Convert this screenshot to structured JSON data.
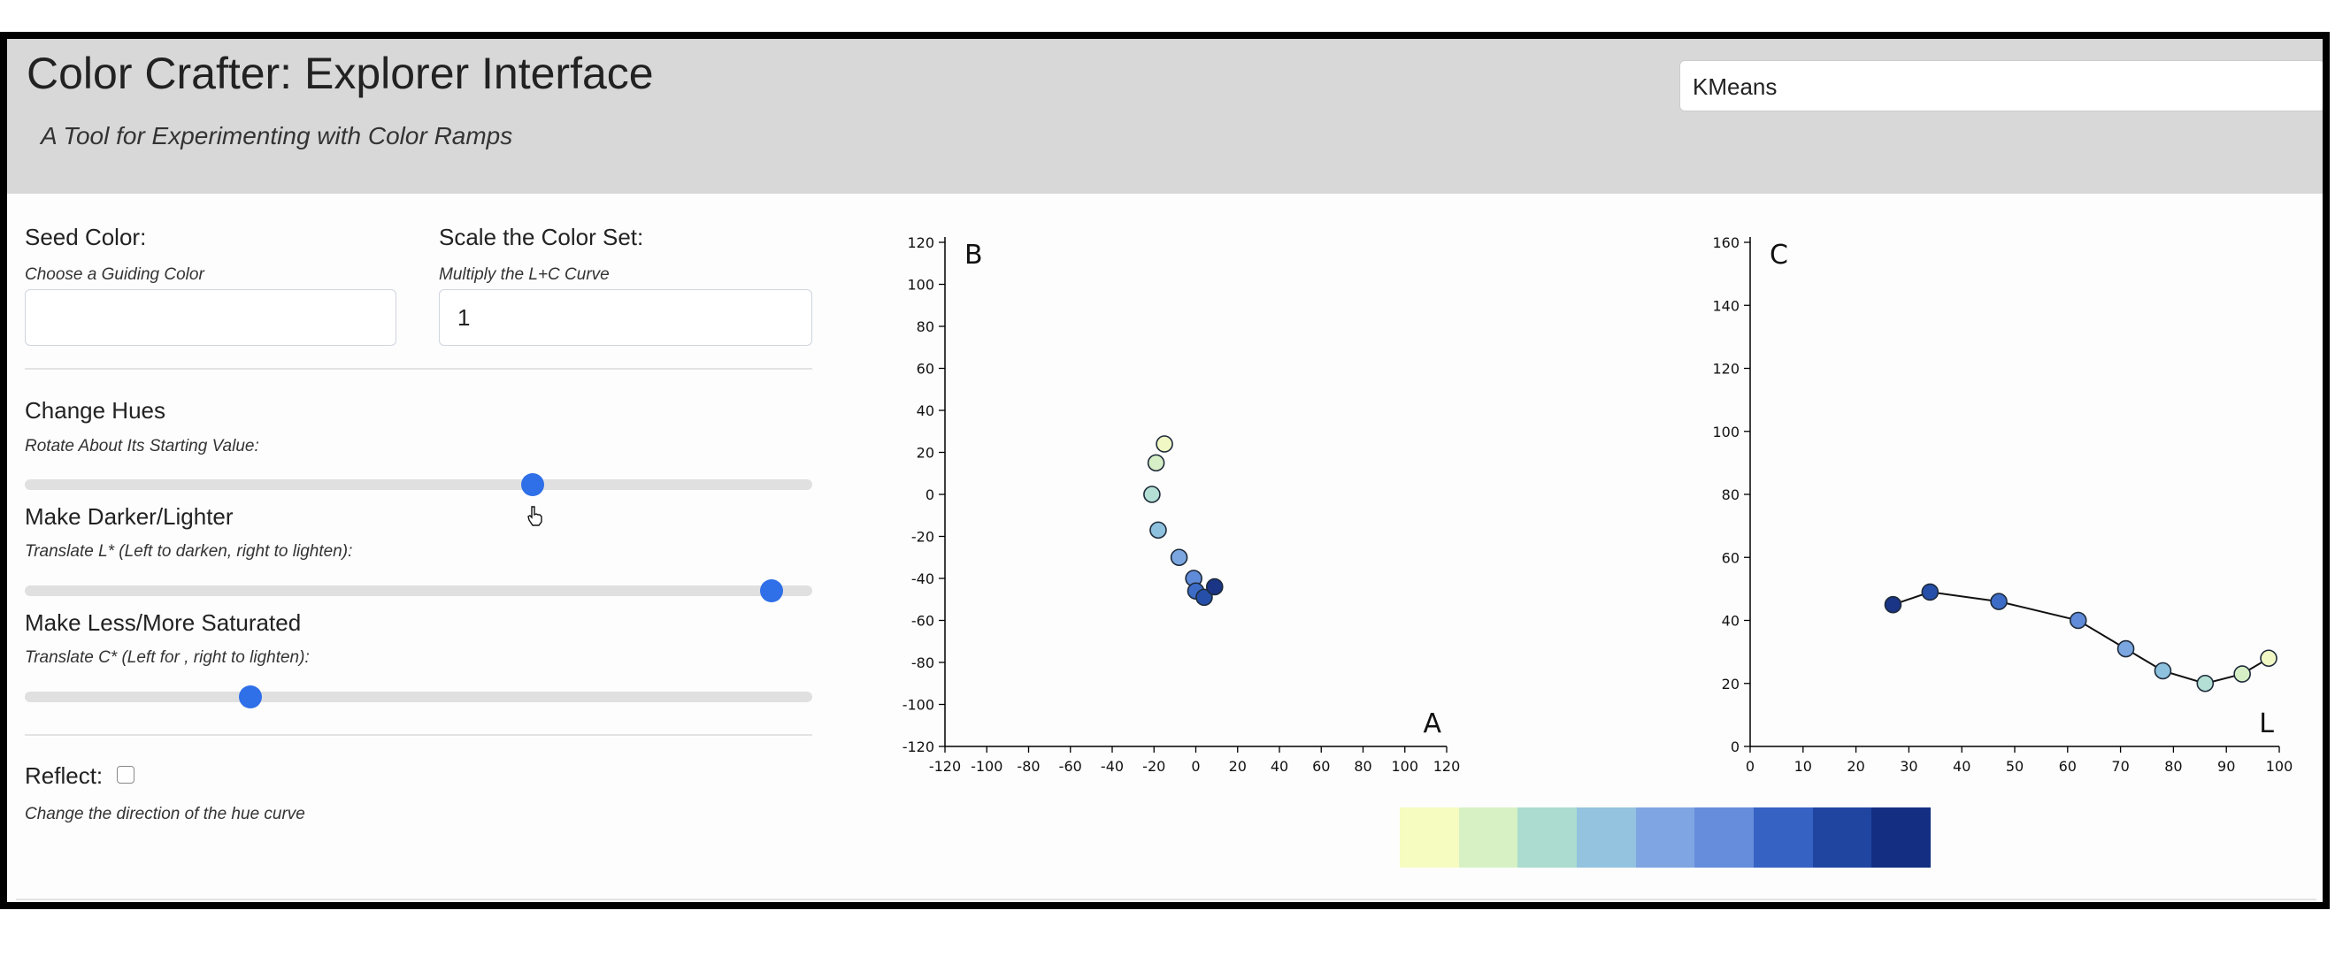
{
  "header": {
    "title": "Color Crafter: Explorer Interface",
    "subtitle": "A Tool for Experimenting with Color Ramps",
    "algorithm": "KMeans"
  },
  "controls": {
    "seed": {
      "label": "Seed Color:",
      "hint": "Choose a Guiding Color",
      "value": ""
    },
    "scale": {
      "label": "Scale the Color Set:",
      "hint": "Multiply the L+C Curve",
      "value": "1"
    },
    "hue": {
      "label": "Change Hues",
      "hint": "Rotate About Its Starting Value:",
      "value_fraction": 0.645
    },
    "lightness": {
      "label": "Make Darker/Lighter",
      "hint": "Translate L* (Left to darken, right to lighten):",
      "value_fraction": 0.948
    },
    "saturation": {
      "label": "Make Less/More Saturated",
      "hint": "Translate C* (Left for , right to lighten):",
      "value_fraction": 0.287
    },
    "reflect": {
      "label": "Reflect:",
      "hint": "Change the direction of the hue curve",
      "checked": false
    }
  },
  "chart_data": [
    {
      "type": "scatter",
      "panel_label": "B",
      "corner_label": "A",
      "xlim": [
        -120,
        120
      ],
      "ylim": [
        -120,
        120
      ],
      "xticks": [
        "-120",
        "-100",
        "-80",
        "-60",
        "-40",
        "-20",
        "0",
        "20",
        "40",
        "60",
        "80",
        "100",
        "120"
      ],
      "yticks": [
        "120",
        "100",
        "80",
        "60",
        "40",
        "20",
        "0",
        "-20",
        "-40",
        "-60",
        "-80",
        "-100",
        "-120"
      ],
      "points": [
        {
          "x": -15,
          "y": 24,
          "color": "#f1f8c4"
        },
        {
          "x": -19,
          "y": 15,
          "color": "#d7efc6"
        },
        {
          "x": -21,
          "y": 0,
          "color": "#b3dfd4"
        },
        {
          "x": -18,
          "y": -17,
          "color": "#8ec1de"
        },
        {
          "x": -8,
          "y": -30,
          "color": "#7ba6e0"
        },
        {
          "x": -1,
          "y": -40,
          "color": "#5f8bd8"
        },
        {
          "x": 0,
          "y": -46,
          "color": "#3c6cc6"
        },
        {
          "x": 4,
          "y": -49,
          "color": "#254fa8"
        },
        {
          "x": 9,
          "y": -44,
          "color": "#1a3486"
        }
      ]
    },
    {
      "type": "line",
      "panel_label": "C",
      "corner_label": "L",
      "xlim": [
        0,
        100
      ],
      "ylim": [
        0,
        160
      ],
      "xticks": [
        "0",
        "10",
        "20",
        "30",
        "40",
        "50",
        "60",
        "70",
        "80",
        "90",
        "100"
      ],
      "yticks": [
        "0",
        "20",
        "40",
        "60",
        "80",
        "100",
        "120",
        "140",
        "160"
      ],
      "points": [
        {
          "x": 27,
          "y": 45,
          "color": "#1a3486"
        },
        {
          "x": 34,
          "y": 49,
          "color": "#254fa8"
        },
        {
          "x": 47,
          "y": 46,
          "color": "#3c6cc6"
        },
        {
          "x": 62,
          "y": 40,
          "color": "#5f8bd8"
        },
        {
          "x": 71,
          "y": 31,
          "color": "#7ba6e0"
        },
        {
          "x": 78,
          "y": 24,
          "color": "#8ec1de"
        },
        {
          "x": 86,
          "y": 20,
          "color": "#b3dfd4"
        },
        {
          "x": 93,
          "y": 23,
          "color": "#d7efc6"
        },
        {
          "x": 98,
          "y": 28,
          "color": "#f1f8c4"
        }
      ]
    }
  ],
  "ramp": {
    "colors": [
      "#f6fbc0",
      "#d7f1c4",
      "#abdccf",
      "#93c3df",
      "#7fa6e2",
      "#668ddb",
      "#3562c3",
      "#1f45a1",
      "#142f82"
    ]
  }
}
